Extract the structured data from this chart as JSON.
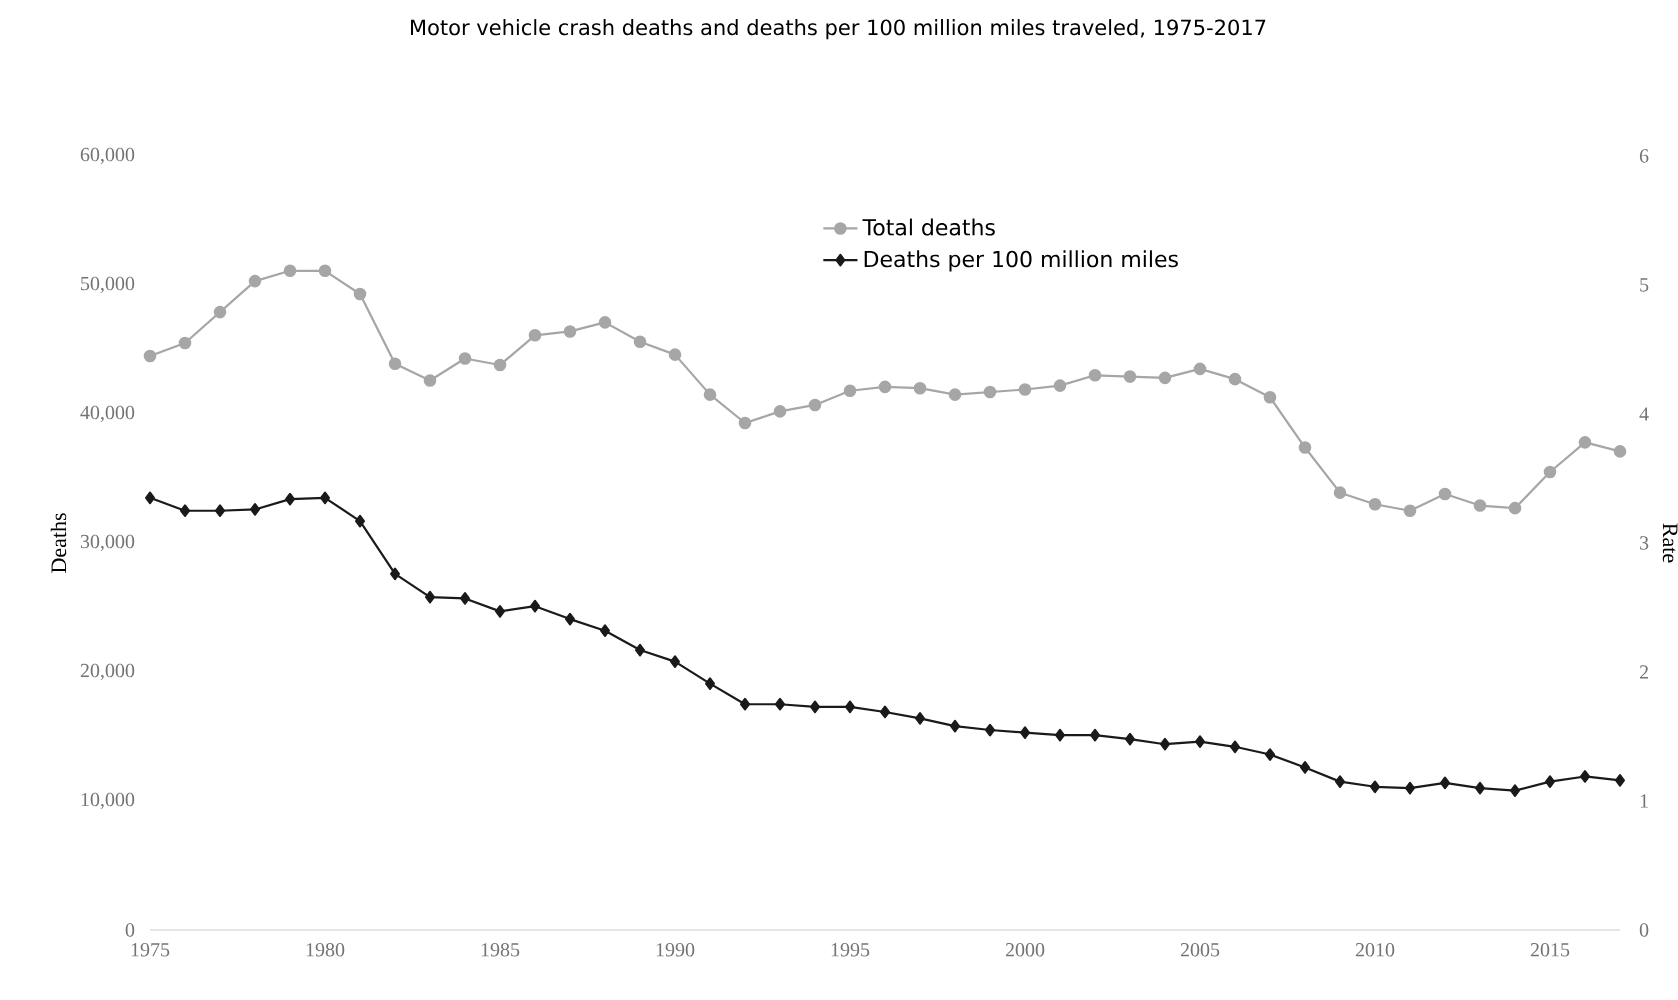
{
  "chart_data": {
    "type": "line",
    "title": "Motor vehicle crash deaths and deaths per 100 million miles traveled, 1975-2017",
    "x": [
      1975,
      1976,
      1977,
      1978,
      1979,
      1980,
      1981,
      1982,
      1983,
      1984,
      1985,
      1986,
      1987,
      1988,
      1989,
      1990,
      1991,
      1992,
      1993,
      1994,
      1995,
      1996,
      1997,
      1998,
      1999,
      2000,
      2001,
      2002,
      2003,
      2004,
      2005,
      2006,
      2007,
      2008,
      2009,
      2010,
      2011,
      2012,
      2013,
      2014,
      2015,
      2016,
      2017
    ],
    "series": [
      {
        "name": "Total deaths",
        "color": "#a6a6a6",
        "marker": "circle",
        "values": [
          44500,
          45500,
          47900,
          50300,
          51100,
          51100,
          49300,
          43900,
          42600,
          44300,
          43800,
          46100,
          46400,
          47100,
          45600,
          44600,
          41500,
          39300,
          40200,
          40700,
          41800,
          42100,
          42000,
          41500,
          41700,
          41900,
          42200,
          43000,
          42900,
          42800,
          43500,
          42700,
          41300,
          37400,
          33900,
          33000,
          32500,
          33800,
          32900,
          32700,
          35500,
          37800,
          37100
        ]
      },
      {
        "name": "Deaths per 100 million miles",
        "color": "#1a1a1a",
        "marker": "diamond",
        "axis": "y2",
        "values": [
          3.35,
          3.25,
          3.25,
          3.26,
          3.34,
          3.35,
          3.17,
          2.76,
          2.58,
          2.57,
          2.47,
          2.51,
          2.41,
          2.32,
          2.17,
          2.08,
          1.91,
          1.75,
          1.75,
          1.73,
          1.73,
          1.69,
          1.64,
          1.58,
          1.55,
          1.53,
          1.51,
          1.51,
          1.48,
          1.44,
          1.46,
          1.42,
          1.36,
          1.26,
          1.15,
          1.11,
          1.1,
          1.14,
          1.1,
          1.08,
          1.15,
          1.19,
          1.16
        ]
      }
    ],
    "ylabel": "Deaths",
    "y2label": "Rate",
    "xlim": [
      1975,
      2017
    ],
    "xticks": [
      1975,
      1980,
      1985,
      1990,
      1995,
      2000,
      2005,
      2010,
      2015
    ],
    "ylim": [
      0,
      60000
    ],
    "yticks": [
      {
        "value": 0,
        "label": "0"
      },
      {
        "value": 10000,
        "label": "10,000"
      },
      {
        "value": 20000,
        "label": "20,000"
      },
      {
        "value": 30000,
        "label": "30,000"
      },
      {
        "value": 40000,
        "label": "40,000"
      },
      {
        "value": 50000,
        "label": "50,000"
      },
      {
        "value": 60000,
        "label": "60,000"
      }
    ],
    "y2lim": [
      0,
      6
    ],
    "y2ticks": [
      0,
      1,
      2,
      3,
      4,
      5,
      6
    ],
    "legend": "top",
    "grid": false
  }
}
